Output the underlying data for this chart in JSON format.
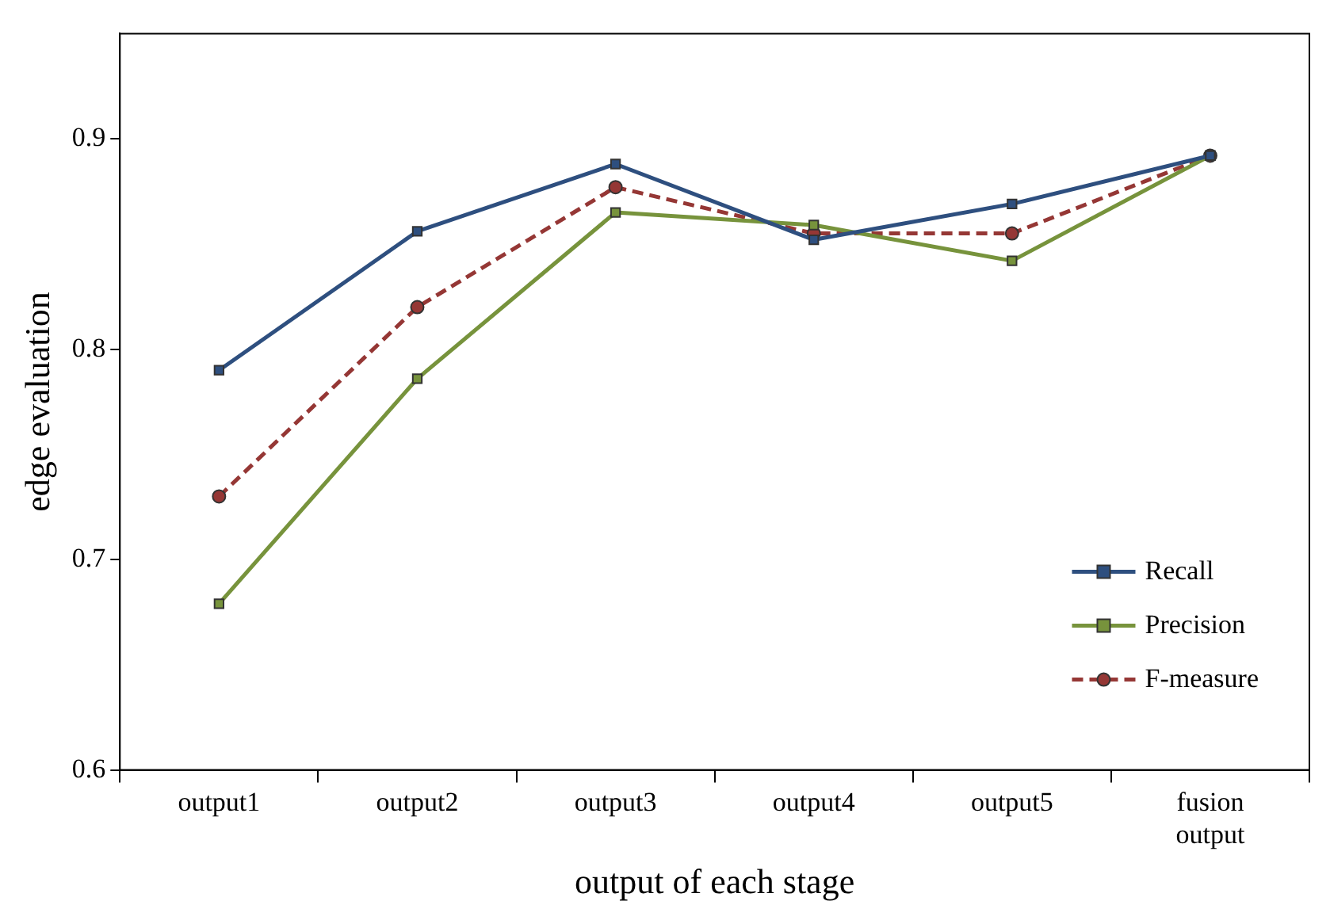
{
  "chart_data": {
    "type": "line",
    "xlabel": "output of each stage",
    "ylabel": "edge evaluation",
    "categories": [
      "output1",
      "output2",
      "output3",
      "output4",
      "output5",
      "fusion output"
    ],
    "series": [
      {
        "name": "Recall",
        "color": "#2e4f7f",
        "marker": "square",
        "line_style": "solid",
        "values": [
          0.79,
          0.856,
          0.888,
          0.852,
          0.869,
          0.892
        ]
      },
      {
        "name": "Precision",
        "color": "#77933c",
        "marker": "square",
        "line_style": "solid",
        "values": [
          0.679,
          0.786,
          0.865,
          0.859,
          0.842,
          0.892
        ]
      },
      {
        "name": "F-measure",
        "color": "#953735",
        "marker": "circle",
        "line_style": "dashed",
        "values": [
          0.73,
          0.82,
          0.877,
          0.855,
          0.855,
          0.892
        ]
      }
    ],
    "ylim": [
      0.6,
      0.95
    ],
    "yticks": [
      0.6,
      0.7,
      0.8,
      0.9
    ],
    "grid": false,
    "legend": "bottom right"
  }
}
